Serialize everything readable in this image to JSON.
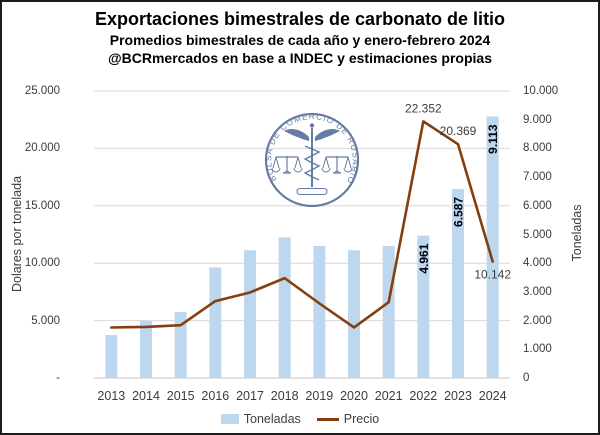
{
  "header": {
    "title": "Exportaciones bimestrales de carbonato de litio",
    "subtitle1": "Promedios bimestrales de cada año y enero-febrero 2024",
    "subtitle2": "@BCRmercados en base a INDEC y estimaciones propias"
  },
  "watermark": {
    "organization": "Bolsa de Comercio de Rosario",
    "ring_text": "BOLSA DE COMERCIO DE ROSARIO",
    "color": "#44608F"
  },
  "chart_data": {
    "type": "combo-bar-line",
    "categories": [
      "2013",
      "2014",
      "2015",
      "2016",
      "2017",
      "2018",
      "2019",
      "2020",
      "2021",
      "2022",
      "2023",
      "2024"
    ],
    "series": [
      {
        "name": "Toneladas",
        "type": "bar",
        "axis": "right",
        "color": "#BDD7EE",
        "values": [
          1500,
          2000,
          2300,
          3850,
          4450,
          4900,
          4600,
          4450,
          4600,
          4961,
          6587,
          9113
        ],
        "labels": [
          null,
          null,
          null,
          null,
          null,
          null,
          null,
          null,
          null,
          "4.961",
          "6.587",
          "9.113"
        ]
      },
      {
        "name": "Precio",
        "type": "line",
        "axis": "left",
        "color": "#853E10",
        "values": [
          4400,
          4450,
          4600,
          6700,
          7450,
          8700,
          6500,
          4400,
          6600,
          22352,
          20369,
          10142
        ],
        "labels": [
          null,
          null,
          null,
          null,
          null,
          null,
          null,
          null,
          null,
          "22.352",
          "20.369",
          "10.142"
        ],
        "label_positions": [
          null,
          null,
          null,
          null,
          null,
          null,
          null,
          null,
          null,
          "above",
          "above",
          "below"
        ]
      }
    ],
    "left_axis": {
      "title": "Dolares por tonelada",
      "min": 0,
      "max": 25000,
      "tick_labels": [
        "-",
        "5.000",
        "10.000",
        "15.000",
        "20.000",
        "25.000"
      ]
    },
    "right_axis": {
      "title": "Toneladas",
      "min": 0,
      "max": 10000,
      "tick_labels": [
        "0",
        "1.000",
        "2.000",
        "3.000",
        "4.000",
        "5.000",
        "6.000",
        "7.000",
        "8.000",
        "9.000",
        "10.000"
      ]
    },
    "grid": {
      "show": true,
      "color": "#D9D9D9",
      "baseline_color": "#C6C6C6"
    },
    "legend": {
      "position": "bottom"
    },
    "text_color": "#3b3b3b",
    "bar_label_color": "#000000",
    "line_label_color": "#3d3d3d"
  }
}
